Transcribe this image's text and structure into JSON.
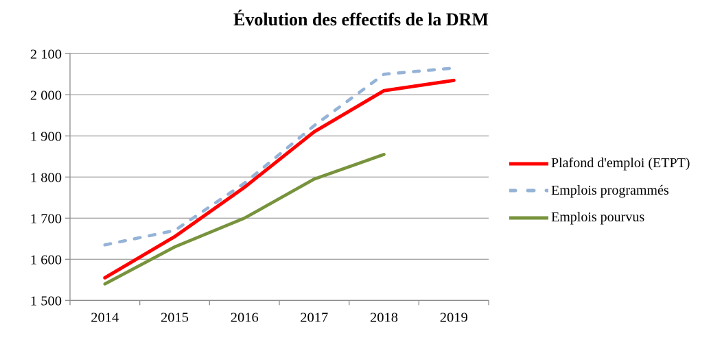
{
  "chart_data": {
    "type": "line",
    "title": "Évolution des effectifs de la DRM",
    "categories": [
      "2014",
      "2015",
      "2016",
      "2017",
      "2018",
      "2019"
    ],
    "series": [
      {
        "name": "Plafond d'emploi (ETPT)",
        "color": "#FF0000",
        "line_style": "solid",
        "values": [
          1555,
          1655,
          1775,
          1910,
          2010,
          2035
        ]
      },
      {
        "name": "Emplois programmés",
        "color": "#95B3D7",
        "line_style": "dashed",
        "values": [
          1635,
          1670,
          1785,
          1925,
          2050,
          2065
        ]
      },
      {
        "name": "Emplois pourvus",
        "color": "#77933C",
        "line_style": "solid",
        "values": [
          1540,
          1630,
          1700,
          1795,
          1855,
          null
        ]
      }
    ],
    "y_axis": {
      "min": 1500,
      "max": 2100,
      "step": 100,
      "tick_labels": [
        "1 500",
        "1 600",
        "1 700",
        "1 800",
        "1 900",
        "2 000",
        "2 100"
      ]
    },
    "x_axis": {
      "tick_labels": [
        "2014",
        "2015",
        "2016",
        "2017",
        "2018",
        "2019"
      ]
    },
    "grid": true,
    "legend_position": "right",
    "colors": {
      "gridline": "#A6A6A6",
      "axis": "#8C8C8C",
      "text": "#000000",
      "background": "#FFFFFF"
    }
  }
}
